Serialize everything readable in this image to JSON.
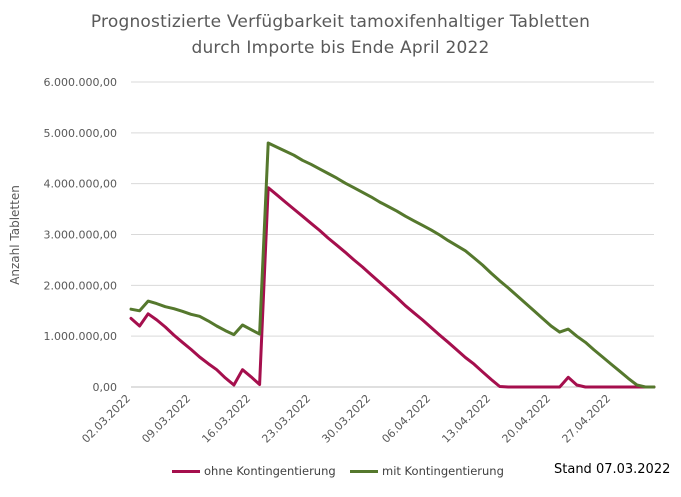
{
  "chart_data": {
    "type": "line",
    "title": "Prognostizierte Verfügbarkeit tamoxifenhaltiger Tabletten",
    "subtitle": "durch Importe bis Ende April 2022",
    "ylabel": "Anzahl Tabletten",
    "xlabel": "",
    "ylim": [
      0,
      6000000
    ],
    "yticks": [
      0,
      1000000,
      2000000,
      3000000,
      4000000,
      5000000,
      6000000
    ],
    "ytick_labels": [
      "0,00",
      "1.000.000,00",
      "2.000.000,00",
      "3.000.000,00",
      "4.000.000,00",
      "5.000.000,00",
      "6.000.000,00"
    ],
    "xlim": [
      "2022-03-02",
      "2022-05-02"
    ],
    "xtick_labels": [
      "02.03.2022",
      "09.03.2022",
      "16.03.2022",
      "23.03.2022",
      "30.03.2022",
      "06.04.2022",
      "13.04.2022",
      "20.04.2022",
      "27.04.2022"
    ],
    "grid": "horizontal",
    "legend_position": "bottom",
    "series": [
      {
        "name": "ohne Kontingentierung",
        "color": "#A50F4D",
        "x": [
          "2022-03-02",
          "2022-03-03",
          "2022-03-04",
          "2022-03-05",
          "2022-03-06",
          "2022-03-07",
          "2022-03-08",
          "2022-03-09",
          "2022-03-10",
          "2022-03-11",
          "2022-03-12",
          "2022-03-13",
          "2022-03-14",
          "2022-03-15",
          "2022-03-16",
          "2022-03-17",
          "2022-03-18",
          "2022-03-19",
          "2022-03-20",
          "2022-03-21",
          "2022-03-22",
          "2022-03-23",
          "2022-03-24",
          "2022-03-25",
          "2022-03-26",
          "2022-03-27",
          "2022-03-28",
          "2022-03-29",
          "2022-03-30",
          "2022-03-31",
          "2022-04-01",
          "2022-04-02",
          "2022-04-03",
          "2022-04-04",
          "2022-04-05",
          "2022-04-06",
          "2022-04-07",
          "2022-04-08",
          "2022-04-09",
          "2022-04-10",
          "2022-04-11",
          "2022-04-12",
          "2022-04-13",
          "2022-04-14",
          "2022-04-15",
          "2022-04-16",
          "2022-04-17",
          "2022-04-18",
          "2022-04-19",
          "2022-04-20",
          "2022-04-21",
          "2022-04-22",
          "2022-04-23",
          "2022-04-24",
          "2022-04-25",
          "2022-04-26",
          "2022-04-27",
          "2022-04-28",
          "2022-04-29",
          "2022-04-30",
          "2022-05-01",
          "2022-05-02"
        ],
        "values": [
          1350000,
          1200000,
          1440000,
          1320000,
          1180000,
          1020000,
          880000,
          740000,
          590000,
          460000,
          340000,
          180000,
          40000,
          340000,
          200000,
          50000,
          3920000,
          3780000,
          3640000,
          3500000,
          3360000,
          3220000,
          3080000,
          2930000,
          2790000,
          2650000,
          2500000,
          2360000,
          2210000,
          2060000,
          1910000,
          1760000,
          1600000,
          1460000,
          1320000,
          1170000,
          1020000,
          880000,
          730000,
          580000,
          450000,
          300000,
          150000,
          10000,
          0,
          0,
          0,
          0,
          0,
          0,
          0,
          190000,
          40000,
          0,
          0,
          0,
          0,
          0,
          0,
          0,
          0,
          0
        ]
      },
      {
        "name": "mit Kontingentierung",
        "color": "#55782D",
        "x": [
          "2022-03-02",
          "2022-03-03",
          "2022-03-04",
          "2022-03-05",
          "2022-03-06",
          "2022-03-07",
          "2022-03-08",
          "2022-03-09",
          "2022-03-10",
          "2022-03-11",
          "2022-03-12",
          "2022-03-13",
          "2022-03-14",
          "2022-03-15",
          "2022-03-16",
          "2022-03-17",
          "2022-03-18",
          "2022-03-19",
          "2022-03-20",
          "2022-03-21",
          "2022-03-22",
          "2022-03-23",
          "2022-03-24",
          "2022-03-25",
          "2022-03-26",
          "2022-03-27",
          "2022-03-28",
          "2022-03-29",
          "2022-03-30",
          "2022-03-31",
          "2022-04-01",
          "2022-04-02",
          "2022-04-03",
          "2022-04-04",
          "2022-04-05",
          "2022-04-06",
          "2022-04-07",
          "2022-04-08",
          "2022-04-09",
          "2022-04-10",
          "2022-04-11",
          "2022-04-12",
          "2022-04-13",
          "2022-04-14",
          "2022-04-15",
          "2022-04-16",
          "2022-04-17",
          "2022-04-18",
          "2022-04-19",
          "2022-04-20",
          "2022-04-21",
          "2022-04-22",
          "2022-04-23",
          "2022-04-24",
          "2022-04-25",
          "2022-04-26",
          "2022-04-27",
          "2022-04-28",
          "2022-04-29",
          "2022-04-30",
          "2022-05-01",
          "2022-05-02"
        ],
        "values": [
          1530000,
          1500000,
          1690000,
          1640000,
          1580000,
          1540000,
          1490000,
          1430000,
          1390000,
          1300000,
          1200000,
          1110000,
          1030000,
          1220000,
          1130000,
          1040000,
          4800000,
          4720000,
          4640000,
          4560000,
          4460000,
          4380000,
          4290000,
          4200000,
          4110000,
          4010000,
          3920000,
          3830000,
          3740000,
          3640000,
          3550000,
          3460000,
          3360000,
          3270000,
          3180000,
          3090000,
          2990000,
          2880000,
          2780000,
          2680000,
          2540000,
          2400000,
          2240000,
          2090000,
          1950000,
          1800000,
          1650000,
          1500000,
          1350000,
          1200000,
          1080000,
          1140000,
          1000000,
          880000,
          730000,
          590000,
          450000,
          310000,
          170000,
          40000,
          0,
          0
        ]
      }
    ]
  },
  "stand_label": "Stand 07.03.2022"
}
